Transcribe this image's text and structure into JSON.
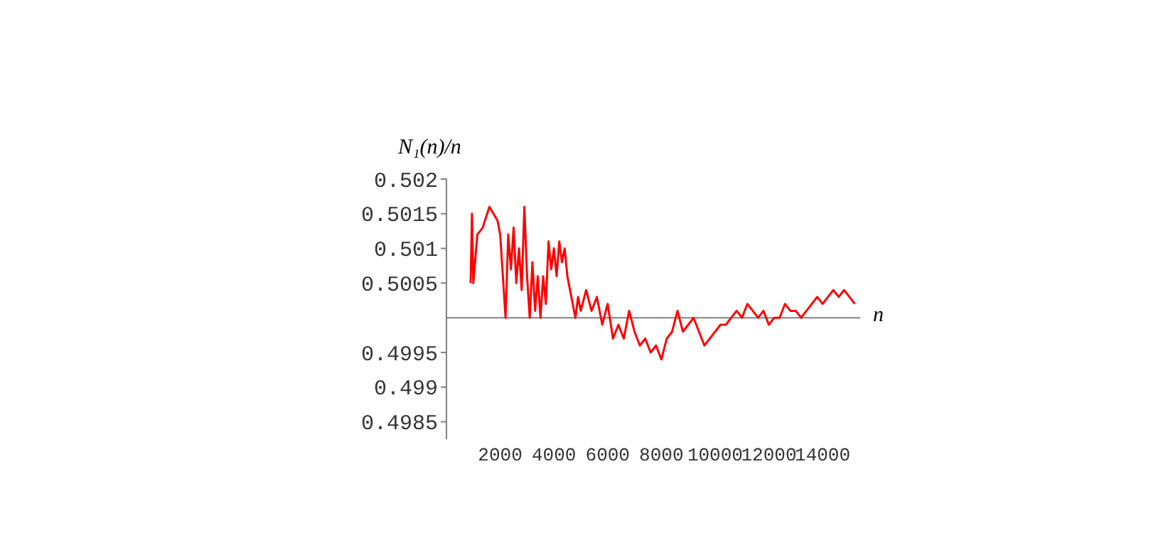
{
  "chart_data": {
    "type": "line",
    "xlabel": "n",
    "ylabel": "N₁(n)/n",
    "x": [
      900,
      950,
      1000,
      1150,
      1350,
      1600,
      1900,
      2000,
      2100,
      2200,
      2300,
      2400,
      2500,
      2600,
      2700,
      2800,
      2900,
      3000,
      3100,
      3200,
      3300,
      3400,
      3500,
      3600,
      3700,
      3800,
      3900,
      4000,
      4100,
      4200,
      4300,
      4400,
      4500,
      4600,
      4800,
      4900,
      5000,
      5200,
      5400,
      5600,
      5800,
      6000,
      6200,
      6400,
      6600,
      6800,
      7000,
      7200,
      7400,
      7600,
      7800,
      8000,
      8200,
      8400,
      8600,
      8800,
      9000,
      9200,
      9400,
      9600,
      9800,
      10000,
      10200,
      10400,
      10600,
      10800,
      11000,
      11200,
      11400,
      11600,
      11800,
      12000,
      12200,
      12400,
      12600,
      12800,
      13000,
      13200,
      13400,
      13600,
      13800,
      14000,
      14200,
      14400,
      14600,
      14800,
      15000,
      15200
    ],
    "series": [
      {
        "color": "#ff0000",
        "values": [
          0.5005,
          0.5015,
          0.5005,
          0.5012,
          0.5013,
          0.5016,
          0.5014,
          0.5012,
          0.5006,
          0.5,
          0.5012,
          0.5007,
          0.5013,
          0.5005,
          0.501,
          0.5004,
          0.5016,
          0.5006,
          0.5,
          0.5008,
          0.5001,
          0.5006,
          0.5,
          0.5006,
          0.5002,
          0.5011,
          0.5007,
          0.501,
          0.5006,
          0.5011,
          0.5008,
          0.501,
          0.5006,
          0.5004,
          0.5,
          0.5003,
          0.5001,
          0.5004,
          0.5001,
          0.5003,
          0.4999,
          0.5002,
          0.4997,
          0.4999,
          0.4997,
          0.5001,
          0.4998,
          0.4996,
          0.4997,
          0.4995,
          0.4996,
          0.4994,
          0.4997,
          0.4998,
          0.5001,
          0.4998,
          0.4999,
          0.5,
          0.4998,
          0.4996,
          0.4997,
          0.4998,
          0.4999,
          0.4999,
          0.5,
          0.5001,
          0.5,
          0.5002,
          0.5001,
          0.5,
          0.5001,
          0.4999,
          0.5,
          0.5,
          0.5002,
          0.5001,
          0.5001,
          0.5,
          0.5001,
          0.5002,
          0.5003,
          0.5002,
          0.5003,
          0.5004,
          0.5003,
          0.5004,
          0.5003,
          0.5002
        ]
      }
    ],
    "xlim": [
      0,
      15400
    ],
    "xticks": [
      2000,
      4000,
      6000,
      8000,
      10000,
      12000,
      14000
    ],
    "ylim": [
      0.49825,
      0.502
    ],
    "yticks": [
      0.4985,
      0.499,
      0.4995,
      0.5005,
      0.501,
      0.5015,
      0.502
    ],
    "ref_lines": [
      {
        "axis": "y",
        "value": 0.5,
        "color": "#808080"
      }
    ],
    "grid": false,
    "legend": false
  }
}
